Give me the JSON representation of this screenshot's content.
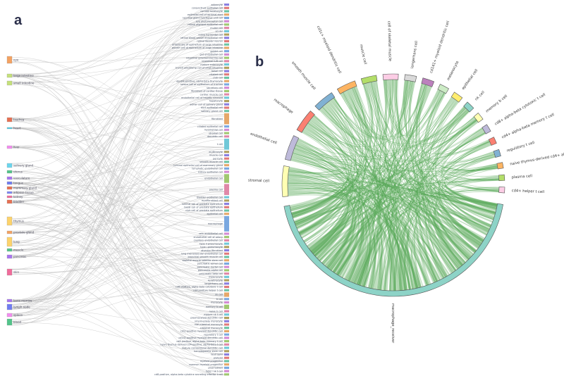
{
  "panels": {
    "a": "a",
    "b": "b"
  },
  "sankey": {
    "link_color": "#bdbdbd",
    "tissues": [
      {
        "label": "eye",
        "color": "#f4a261",
        "weight": 10
      },
      {
        "label": "large intestine",
        "color": "#c5e17a",
        "weight": 5
      },
      {
        "label": "small intestine",
        "color": "#c5e17a",
        "weight": 6
      },
      {
        "label": "trachea",
        "color": "#e76f51",
        "weight": 6
      },
      {
        "label": "heart",
        "color": "#48cae4",
        "weight": 2
      },
      {
        "label": "liver",
        "color": "#f48cf0",
        "weight": 4
      },
      {
        "label": "salivary gland",
        "color": "#6ad6ee",
        "weight": 6
      },
      {
        "label": "uterus",
        "color": "#52c48a",
        "weight": 4
      },
      {
        "label": "vasculature",
        "color": "#a874f0",
        "weight": 4
      },
      {
        "label": "tongue",
        "color": "#6f7cf2",
        "weight": 4
      },
      {
        "label": "mammary gland",
        "color": "#e76f51",
        "weight": 4
      },
      {
        "label": "adipose tissue",
        "color": "#7b85f5",
        "weight": 3
      },
      {
        "label": "kidney",
        "color": "#f06c9b",
        "weight": 3
      },
      {
        "label": "bladder",
        "color": "#e76f51",
        "weight": 5
      },
      {
        "label": "thymus",
        "color": "#fcd36b",
        "weight": 12
      },
      {
        "label": "prostate gland",
        "color": "#f4a261",
        "weight": 4
      },
      {
        "label": "lung",
        "color": "#fcd36b",
        "weight": 13
      },
      {
        "label": "muscle",
        "color": "#52c48a",
        "weight": 4
      },
      {
        "label": "pancreas",
        "color": "#a874f0",
        "weight": 5
      },
      {
        "label": "skin",
        "color": "#f06c9b",
        "weight": 9
      },
      {
        "label": "bone marrow",
        "color": "#a874f0",
        "weight": 4
      },
      {
        "label": "lymph node",
        "color": "#6f7cf2",
        "weight": 8
      },
      {
        "label": "spleen",
        "color": "#f48cf0",
        "weight": 5
      },
      {
        "label": "blood",
        "color": "#52c48a",
        "weight": 9
      }
    ],
    "cell_types": [
      {
        "label": "adipocyte",
        "weight": 1
      },
      {
        "label": "conjunctival epithelial cell",
        "weight": 1
      },
      {
        "label": "corneal keratocyte",
        "weight": 1
      },
      {
        "label": "epithelial cell of lacrimal duct",
        "weight": 1
      },
      {
        "label": "lacrimal gland functional unit cell",
        "weight": 1
      },
      {
        "label": "eye photoreceptor cell",
        "weight": 1
      },
      {
        "label": "retinal pigment epithelial cell",
        "weight": 1
      },
      {
        "label": "muller cell",
        "weight": 1
      },
      {
        "label": "ocular",
        "weight": 1
      },
      {
        "label": "retina horizontal cell",
        "weight": 1
      },
      {
        "label": "retinal blood vessel endothelial cell",
        "weight": 1
      },
      {
        "label": "retinal bipolar neuron",
        "weight": 1
      },
      {
        "label": "enterocyte of epithelium of large intestine",
        "weight": 1
      },
      {
        "label": "paneth cell of epithelium of large intestine",
        "weight": 1
      },
      {
        "label": "goblet cell",
        "weight": 1
      },
      {
        "label": "gut endothelial cell",
        "weight": 1
      },
      {
        "label": "intestinal enteroendocrine cell",
        "weight": 1
      },
      {
        "label": "intestinal tuft cell",
        "weight": 1
      },
      {
        "label": "mature enterocyte",
        "weight": 1
      },
      {
        "label": "transit amplifying cell of small intestine",
        "weight": 1
      },
      {
        "label": "basal cell",
        "weight": 1
      },
      {
        "label": "ciliated cell",
        "weight": 1
      },
      {
        "label": "club cell",
        "weight": 1
      },
      {
        "label": "double-positive, alpha-beta thymocyte",
        "weight": 1
      },
      {
        "label": "serous cell of epithelium of trachea",
        "weight": 1
      },
      {
        "label": "secretory cell",
        "weight": 1
      },
      {
        "label": "fibroblast of cardiac tissue",
        "weight": 1
      },
      {
        "label": "cardiac muscle cell",
        "weight": 1
      },
      {
        "label": "endothelial cell of hepatic sinusoid",
        "weight": 1
      },
      {
        "label": "hepatocyte",
        "weight": 1
      },
      {
        "label": "acinar cell of salivary gland",
        "weight": 1
      },
      {
        "label": "duct epithelial cell",
        "weight": 1
      },
      {
        "label": "salivary gland cell",
        "weight": 1
      },
      {
        "label": "fibroblast",
        "weight": 5
      },
      {
        "label": "ciliated epithelial cell",
        "weight": 1
      },
      {
        "label": "myometrial cell",
        "weight": 1
      },
      {
        "label": "stromal cell",
        "weight": 1
      },
      {
        "label": "dendritic cell",
        "weight": 1
      },
      {
        "label": "t cell",
        "weight": 5
      },
      {
        "label": "erythrocyte",
        "weight": 1
      },
      {
        "label": "muscle cell",
        "weight": 1
      },
      {
        "label": "pericyte",
        "weight": 1
      },
      {
        "label": "smooth muscle cell",
        "weight": 1
      },
      {
        "label": "luminal epithelial cell of mammary gland",
        "weight": 1
      },
      {
        "label": "lymphatic endothelial cell",
        "weight": 1
      },
      {
        "label": "kidney epithelial cell",
        "weight": 1
      },
      {
        "label": "endothelial cell",
        "weight": 4
      },
      {
        "label": "plasma cell",
        "weight": 5
      },
      {
        "label": "bladder urothelial cell",
        "weight": 1
      },
      {
        "label": "myofibroblast cell",
        "weight": 1
      },
      {
        "label": "luminal cell of prostate epithelium",
        "weight": 1
      },
      {
        "label": "basal cell of prostate epithelium",
        "weight": 1
      },
      {
        "label": "club cell of prostate epithelium",
        "weight": 1
      },
      {
        "label": "epithelial cell",
        "weight": 1
      },
      {
        "label": "macrophage",
        "weight": 7
      },
      {
        "label": "vein endothelial cell",
        "weight": 1
      },
      {
        "label": "endothelial cell of artery",
        "weight": 1
      },
      {
        "label": "capillary endothelial cell",
        "weight": 1
      },
      {
        "label": "type ii pneumocyte",
        "weight": 1
      },
      {
        "label": "type i pneumocyte",
        "weight": 1
      },
      {
        "label": "alveolar fibroblast",
        "weight": 1
      },
      {
        "label": "lung microvascular endothelial cell",
        "weight": 1
      },
      {
        "label": "bronchial smooth muscle cell",
        "weight": 1
      },
      {
        "label": "skeletal muscle satellite stem cell",
        "weight": 1
      },
      {
        "label": "pancreatic acinar cell",
        "weight": 1
      },
      {
        "label": "pancreatic ductal cell",
        "weight": 1
      },
      {
        "label": "pancreatic alpha cell",
        "weight": 1
      },
      {
        "label": "pancreatic beta cell",
        "weight": 1
      },
      {
        "label": "melanocyte",
        "weight": 1
      },
      {
        "label": "keratinocyte",
        "weight": 1
      },
      {
        "label": "langerhans cell",
        "weight": 1
      },
      {
        "label": "cd8-positive, alpha-beta cytotoxic t cell",
        "weight": 1
      },
      {
        "label": "cd4-positive helper t cell",
        "weight": 1
      },
      {
        "label": "nk cell",
        "weight": 2
      },
      {
        "label": "b cell",
        "weight": 1
      },
      {
        "label": "monocyte",
        "weight": 1
      },
      {
        "label": "memory b cell",
        "weight": 2
      },
      {
        "label": "naive b cell",
        "weight": 1
      },
      {
        "label": "mature nk t cell",
        "weight": 1
      },
      {
        "label": "plasmacytoid dendritic cell",
        "weight": 1
      },
      {
        "label": "intermediate monocyte",
        "weight": 1
      },
      {
        "label": "non-classical monocyte",
        "weight": 1
      },
      {
        "label": "classical monocyte",
        "weight": 1
      },
      {
        "label": "cd1c-positive myeloid dendritic cell",
        "weight": 1
      },
      {
        "label": "regulatory t cell",
        "weight": 1
      },
      {
        "label": "cd141-positive myeloid dendritic cell",
        "weight": 1
      },
      {
        "label": "cd8-positive, alpha-beta memory t cell",
        "weight": 1
      },
      {
        "label": "naive thymus-derived cd4-positive, alpha-beta t cell",
        "weight": 1
      },
      {
        "label": "mature conventional dendritic cell",
        "weight": 1
      },
      {
        "label": "hematopoietic stem cell",
        "weight": 1
      },
      {
        "label": "neutrophil",
        "weight": 1
      },
      {
        "label": "platelet",
        "weight": 1
      },
      {
        "label": "myeloid progenitor",
        "weight": 1
      },
      {
        "label": "common myeloid progenitor",
        "weight": 1
      },
      {
        "label": "plasmablast",
        "weight": 1
      },
      {
        "label": "type i nk t cell",
        "weight": 1
      },
      {
        "label": "cd8-positive, alpha-beta cytokine secreting effector t cell",
        "weight": 1
      }
    ]
  },
  "chord": {
    "ribbon_color": "#5aa85a",
    "receiver": {
      "label": "macrophage_receiver",
      "color": "#8dd3c7"
    },
    "senders": [
      {
        "label": "stromal cell",
        "color": "#ffffb3",
        "weight": 16
      },
      {
        "label": "endothelial cell",
        "color": "#bebada",
        "weight": 13
      },
      {
        "label": "macrophage",
        "color": "#fb8072",
        "weight": 12
      },
      {
        "label": "smooth muscle cell",
        "color": "#80b1d3",
        "weight": 11
      },
      {
        "label": "cd1c+ myeloid dendritic cell",
        "color": "#fdb462",
        "weight": 10
      },
      {
        "label": "muscle cell",
        "color": "#b3de69",
        "weight": 8
      },
      {
        "label": "cell of skeletal muscle",
        "color": "#fccde5",
        "weight": 8
      },
      {
        "label": "langerhans cell",
        "color": "#d9d9d9",
        "weight": 6
      },
      {
        "label": "cd141+ myeloid dendritic cell",
        "color": "#bc80bd",
        "weight": 6
      },
      {
        "label": "melanocyte",
        "color": "#ccebc5",
        "weight": 5
      },
      {
        "label": "epithelial cell",
        "color": "#ffed6f",
        "weight": 5
      },
      {
        "label": "nk cell",
        "color": "#8dd3c7",
        "weight": 4.5
      },
      {
        "label": "memory b cell",
        "color": "#ffffb3",
        "weight": 4
      },
      {
        "label": "cd8+ alpha-beta cytotoxic t cell",
        "color": "#bebada",
        "weight": 4
      },
      {
        "label": "cd4+ alpha-beta memory t cell",
        "color": "#fb8072",
        "weight": 3.5
      },
      {
        "label": "regulatory t cell",
        "color": "#80b1d3",
        "weight": 3.5
      },
      {
        "label": "naive thymus-derived cd4+ alpha-beta t cell",
        "color": "#fdb462",
        "weight": 3
      },
      {
        "label": "plasma cell",
        "color": "#b3de69",
        "weight": 3
      },
      {
        "label": "cd4+ helper t cell",
        "color": "#fccde5",
        "weight": 3
      }
    ]
  }
}
